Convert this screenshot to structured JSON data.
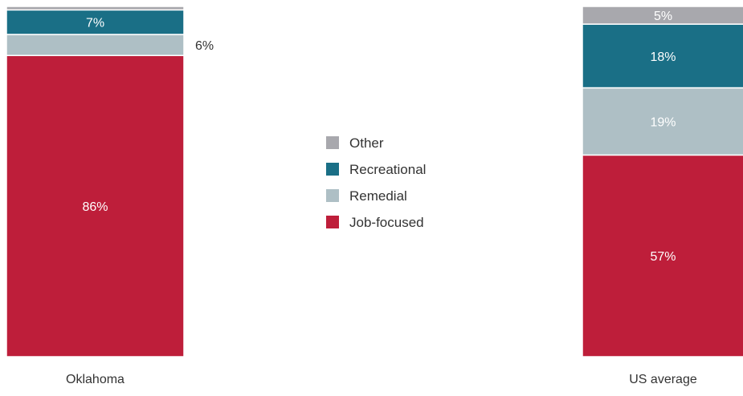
{
  "chart_data": {
    "type": "bar",
    "stacked": true,
    "categories": [
      "Oklahoma",
      "US average"
    ],
    "series": [
      {
        "name": "Job-focused",
        "values": [
          86,
          57
        ],
        "labels": [
          "86%",
          "57%"
        ],
        "color": "#be1e3a"
      },
      {
        "name": "Remedial",
        "values": [
          6,
          19
        ],
        "labels": [
          "6%",
          "19%"
        ],
        "color": "#aebfc5"
      },
      {
        "name": "Recreational",
        "values": [
          7,
          18
        ],
        "labels": [
          "7%",
          "18%"
        ],
        "color": "#1a6f86"
      },
      {
        "name": "Other",
        "values": [
          1,
          5
        ],
        "labels": [
          "",
          "5%"
        ],
        "color": "#a8a8ad"
      }
    ],
    "legend_order": [
      "Other",
      "Recreational",
      "Remedial",
      "Job-focused"
    ],
    "legend_position": "center",
    "ylim": [
      0,
      100
    ],
    "grid": false
  }
}
